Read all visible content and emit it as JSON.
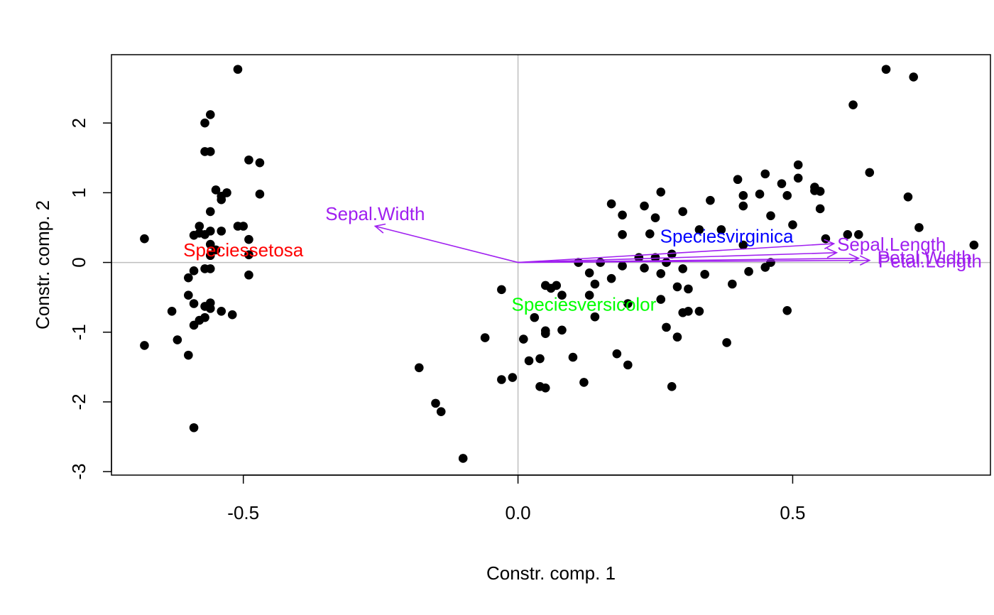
{
  "chart_data": {
    "type": "scatter",
    "title": "",
    "xlabel": "Constr. comp. 1",
    "ylabel": "Constr. comp. 2",
    "xlim": [
      -0.74,
      0.86
    ],
    "ylim": [
      -3.05,
      2.98
    ],
    "x_ticks": [
      -0.5,
      0.0,
      0.5
    ],
    "x_tick_labels": [
      "-0.5",
      "0.0",
      "0.5"
    ],
    "y_ticks": [
      -3,
      -2,
      -1,
      0,
      1,
      2
    ],
    "y_tick_labels": [
      "-3",
      "-2",
      "-1",
      "0",
      "1",
      "2"
    ],
    "reference_lines": {
      "x": 0,
      "y": 0,
      "color": "#bebebe"
    },
    "point_color": "#000000",
    "points": [
      [
        -0.51,
        2.77
      ],
      [
        -0.56,
        2.12
      ],
      [
        -0.57,
        2.0
      ],
      [
        -0.56,
        1.59
      ],
      [
        -0.57,
        1.59
      ],
      [
        -0.49,
        1.47
      ],
      [
        -0.47,
        1.43
      ],
      [
        -0.55,
        1.04
      ],
      [
        -0.53,
        1.0
      ],
      [
        -0.54,
        0.95
      ],
      [
        -0.54,
        0.9
      ],
      [
        -0.47,
        0.98
      ],
      [
        -0.56,
        0.73
      ],
      [
        -0.51,
        0.52
      ],
      [
        -0.58,
        0.52
      ],
      [
        -0.5,
        0.52
      ],
      [
        -0.54,
        0.45
      ],
      [
        -0.56,
        0.45
      ],
      [
        -0.57,
        0.4
      ],
      [
        -0.58,
        0.42
      ],
      [
        -0.59,
        0.39
      ],
      [
        -0.68,
        0.34
      ],
      [
        -0.56,
        0.26
      ],
      [
        -0.49,
        0.33
      ],
      [
        -0.55,
        0.18
      ],
      [
        -0.49,
        0.11
      ],
      [
        -0.56,
        0.1
      ],
      [
        -0.56,
        -0.09
      ],
      [
        -0.57,
        -0.09
      ],
      [
        -0.59,
        -0.12
      ],
      [
        -0.6,
        -0.22
      ],
      [
        -0.49,
        -0.18
      ],
      [
        -0.6,
        -0.47
      ],
      [
        -0.59,
        -0.59
      ],
      [
        -0.56,
        -0.58
      ],
      [
        -0.57,
        -0.63
      ],
      [
        -0.56,
        -0.66
      ],
      [
        -0.54,
        -0.7
      ],
      [
        -0.52,
        -0.75
      ],
      [
        -0.57,
        -0.79
      ],
      [
        -0.58,
        -0.83
      ],
      [
        -0.63,
        -0.7
      ],
      [
        -0.59,
        -0.9
      ],
      [
        -0.62,
        -1.11
      ],
      [
        -0.68,
        -1.19
      ],
      [
        -0.6,
        -1.33
      ],
      [
        -0.59,
        -2.37
      ],
      [
        -0.18,
        -1.51
      ],
      [
        -0.15,
        -2.02
      ],
      [
        -0.14,
        -2.14
      ],
      [
        -0.1,
        -2.81
      ],
      [
        -0.06,
        -1.08
      ],
      [
        -0.03,
        -0.39
      ],
      [
        -0.03,
        -1.68
      ],
      [
        -0.01,
        -1.65
      ],
      [
        0.01,
        -1.1
      ],
      [
        0.02,
        -1.41
      ],
      [
        0.03,
        -0.79
      ],
      [
        0.04,
        -1.38
      ],
      [
        0.04,
        -1.78
      ],
      [
        0.05,
        -1.8
      ],
      [
        0.05,
        -0.98
      ],
      [
        0.05,
        -1.02
      ],
      [
        0.05,
        -0.33
      ],
      [
        0.07,
        -0.33
      ],
      [
        0.06,
        -0.37
      ],
      [
        0.08,
        -0.47
      ],
      [
        0.08,
        -0.97
      ],
      [
        0.1,
        -1.36
      ],
      [
        0.11,
        0.0
      ],
      [
        0.12,
        -1.72
      ],
      [
        0.13,
        -0.47
      ],
      [
        0.13,
        -0.15
      ],
      [
        0.14,
        -0.31
      ],
      [
        0.14,
        -0.78
      ],
      [
        0.15,
        0.0
      ],
      [
        0.17,
        -0.23
      ],
      [
        0.17,
        0.84
      ],
      [
        0.18,
        -1.31
      ],
      [
        0.19,
        -0.05
      ],
      [
        0.19,
        0.4
      ],
      [
        0.19,
        0.68
      ],
      [
        0.2,
        -0.59
      ],
      [
        0.2,
        -1.47
      ],
      [
        0.22,
        0.07
      ],
      [
        0.23,
        0.81
      ],
      [
        0.23,
        -0.08
      ],
      [
        0.24,
        0.41
      ],
      [
        0.25,
        0.07
      ],
      [
        0.25,
        0.64
      ],
      [
        0.26,
        -0.53
      ],
      [
        0.26,
        1.01
      ],
      [
        0.26,
        -0.16
      ],
      [
        0.27,
        -0.93
      ],
      [
        0.27,
        0.0
      ],
      [
        0.28,
        0.12
      ],
      [
        0.28,
        -1.78
      ],
      [
        0.29,
        -1.07
      ],
      [
        0.29,
        -0.35
      ],
      [
        0.3,
        -0.09
      ],
      [
        0.3,
        -0.72
      ],
      [
        0.3,
        0.73
      ],
      [
        0.31,
        -0.7
      ],
      [
        0.31,
        -0.38
      ],
      [
        0.33,
        0.47
      ],
      [
        0.33,
        -0.7
      ],
      [
        0.34,
        -0.17
      ],
      [
        0.35,
        0.89
      ],
      [
        0.37,
        0.47
      ],
      [
        0.38,
        -1.15
      ],
      [
        0.39,
        -0.31
      ],
      [
        0.4,
        1.19
      ],
      [
        0.41,
        0.96
      ],
      [
        0.41,
        0.81
      ],
      [
        0.41,
        0.25
      ],
      [
        0.42,
        -0.13
      ],
      [
        0.44,
        0.98
      ],
      [
        0.45,
        1.27
      ],
      [
        0.45,
        -0.07
      ],
      [
        0.46,
        0.67
      ],
      [
        0.46,
        0.0
      ],
      [
        0.48,
        1.13
      ],
      [
        0.49,
        0.96
      ],
      [
        0.49,
        -0.69
      ],
      [
        0.5,
        0.54
      ],
      [
        0.51,
        1.4
      ],
      [
        0.51,
        1.21
      ],
      [
        0.54,
        1.08
      ],
      [
        0.54,
        1.03
      ],
      [
        0.55,
        1.02
      ],
      [
        0.55,
        0.77
      ],
      [
        0.56,
        0.34
      ],
      [
        0.6,
        0.4
      ],
      [
        0.61,
        2.26
      ],
      [
        0.62,
        0.4
      ],
      [
        0.64,
        1.29
      ],
      [
        0.67,
        2.77
      ],
      [
        0.71,
        0.94
      ],
      [
        0.72,
        2.66
      ],
      [
        0.73,
        0.5
      ],
      [
        0.83,
        0.25
      ]
    ],
    "arrows": [
      {
        "label": "Sepal.Width",
        "x": -0.26,
        "y": 0.52,
        "color": "#a020f0"
      },
      {
        "label": "Speciesvirginica",
        "x": 0.575,
        "y": 0.27,
        "color": "#a020f0"
      },
      {
        "label": "Sepal.Length",
        "x": 0.58,
        "y": 0.14,
        "color": "#a020f0"
      },
      {
        "label": "Petal.Width",
        "x": 0.62,
        "y": 0.06,
        "color": "#a020f0"
      },
      {
        "label": "Petal.Length",
        "x": 0.64,
        "y": 0.03,
        "color": "#a020f0"
      }
    ],
    "text_labels": [
      {
        "text": "Speciessetosa",
        "x": -0.5,
        "y": 0.18,
        "color": "#ff0000"
      },
      {
        "text": "Speciesversicolor",
        "x": 0.12,
        "y": -0.6,
        "color": "#00ff00"
      },
      {
        "text": "Speciesvirginica",
        "x": 0.38,
        "y": 0.38,
        "color": "#0000ff"
      },
      {
        "text": "Sepal.Width",
        "x": -0.26,
        "y": 0.7,
        "color": "#a020f0"
      },
      {
        "text": "Sepal.Length",
        "x": 0.68,
        "y": 0.26,
        "color": "#a020f0"
      },
      {
        "text": "Petal.Width",
        "x": 0.74,
        "y": 0.07,
        "color": "#a020f0"
      },
      {
        "text": "Petal.Length",
        "x": 0.75,
        "y": 0.02,
        "color": "#a020f0"
      }
    ]
  }
}
